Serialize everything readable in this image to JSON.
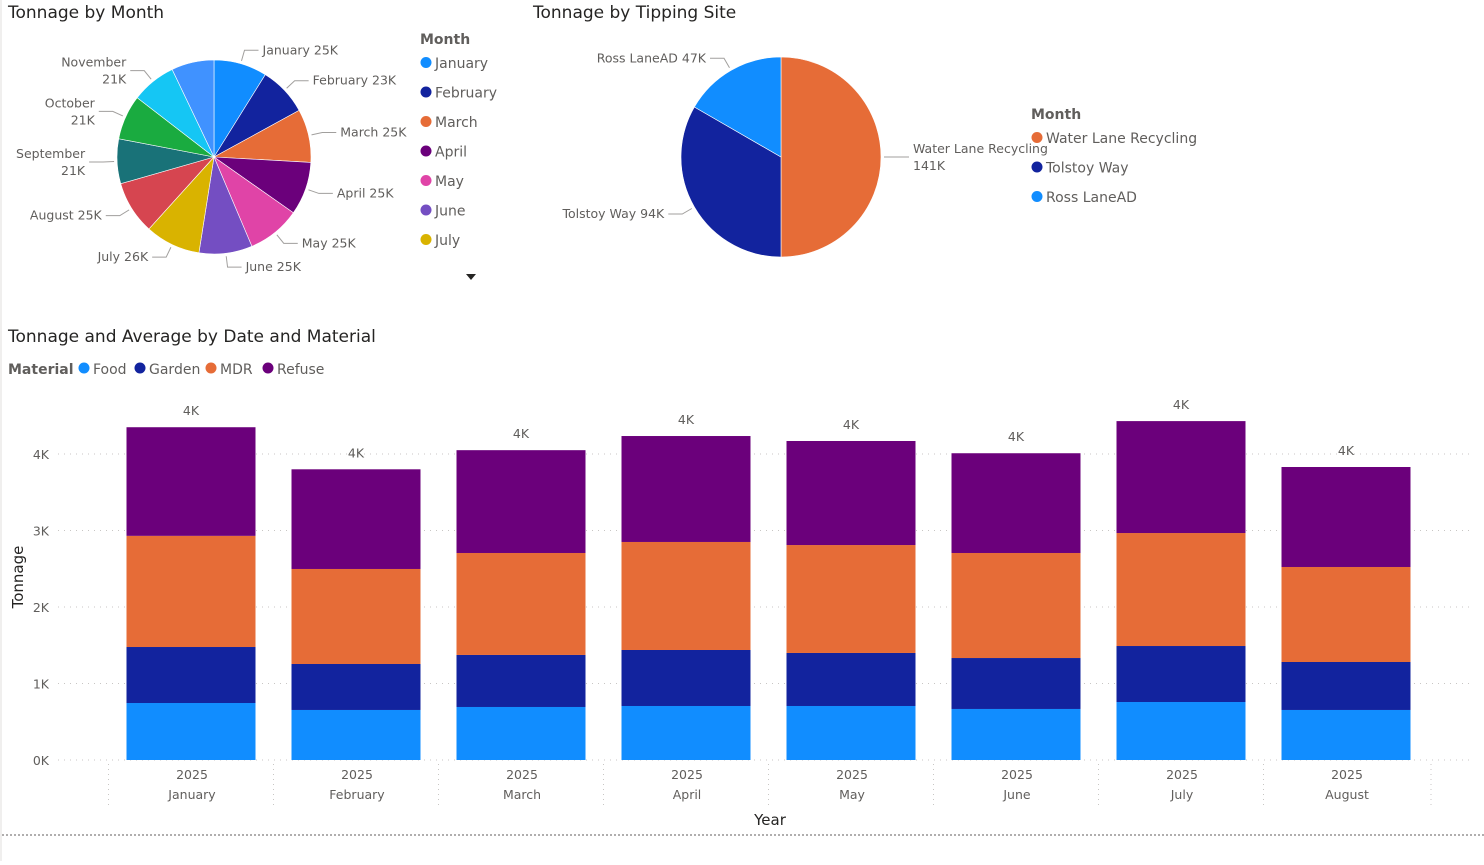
{
  "colors": {
    "food": "#118DFF",
    "garden": "#12239E",
    "mdr": "#E66C37",
    "refuse": "#6B007B"
  },
  "chart_data": [
    {
      "type": "pie",
      "title": "Tonnage by Month",
      "legend_title": "Month",
      "legend_position": "right",
      "legend_items": [
        "January",
        "February",
        "March",
        "April",
        "May",
        "June",
        "July"
      ],
      "slices": [
        {
          "name": "January",
          "value": 25000,
          "label": "25K",
          "color": "#118DFF"
        },
        {
          "name": "February",
          "value": 23000,
          "label": "23K",
          "color": "#12239E"
        },
        {
          "name": "March",
          "value": 25000,
          "label": "25K",
          "color": "#E66C37"
        },
        {
          "name": "April",
          "value": 25000,
          "label": "25K",
          "color": "#6B007B"
        },
        {
          "name": "May",
          "value": 25000,
          "label": "25K",
          "color": "#E044A7"
        },
        {
          "name": "June",
          "value": 25000,
          "label": "25K",
          "color": "#744EC2"
        },
        {
          "name": "July",
          "value": 26000,
          "label": "26K",
          "color": "#D9B300"
        },
        {
          "name": "August",
          "value": 25000,
          "label": "25K",
          "color": "#D64550"
        },
        {
          "name": "September",
          "value": 21000,
          "label": "21K",
          "color": "#197278"
        },
        {
          "name": "October",
          "value": 21000,
          "label": "21K",
          "color": "#1AAB40"
        },
        {
          "name": "November",
          "value": 21000,
          "label": "21K",
          "color": "#15C6F4"
        },
        {
          "name": "",
          "value": 20000,
          "label": "",
          "color": "#4092FF"
        }
      ]
    },
    {
      "type": "pie",
      "title": "Tonnage by Tipping Site",
      "legend_title": "Month",
      "legend_position": "right",
      "slices": [
        {
          "name": "Water Lane Recycling",
          "value": 141000,
          "label": "141K",
          "color": "#E66C37"
        },
        {
          "name": "Tolstoy Way",
          "value": 94000,
          "label": "94K",
          "color": "#12239E"
        },
        {
          "name": "Ross LaneAD",
          "value": 47000,
          "label": "47K",
          "color": "#118DFF"
        }
      ]
    },
    {
      "type": "bar",
      "stacked": true,
      "title": "Tonnage and Average by Date and Material",
      "legend_title": "Material",
      "legend_position": "top-left",
      "xlabel": "Year",
      "ylabel": "Tonnage",
      "ylim": [
        0,
        4600
      ],
      "yticks": [
        {
          "v": 0,
          "label": "0K"
        },
        {
          "v": 1000,
          "label": "1K"
        },
        {
          "v": 2000,
          "label": "2K"
        },
        {
          "v": 3000,
          "label": "3K"
        },
        {
          "v": 4000,
          "label": "4K"
        }
      ],
      "grid": true,
      "categories": [
        {
          "year": "2025",
          "month": "January"
        },
        {
          "year": "2025",
          "month": "February"
        },
        {
          "year": "2025",
          "month": "March"
        },
        {
          "year": "2025",
          "month": "April"
        },
        {
          "year": "2025",
          "month": "May"
        },
        {
          "year": "2025",
          "month": "June"
        },
        {
          "year": "2025",
          "month": "July"
        },
        {
          "year": "2025",
          "month": "August"
        }
      ],
      "series": [
        {
          "name": "Food",
          "color": "#118DFF",
          "values": [
            745,
            654,
            693,
            706,
            706,
            667,
            758,
            654
          ]
        },
        {
          "name": "Garden",
          "color": "#12239E",
          "values": [
            732,
            601,
            680,
            732,
            693,
            666,
            732,
            627
          ]
        },
        {
          "name": "MDR",
          "color": "#E66C37",
          "values": [
            1453,
            1242,
            1333,
            1412,
            1411,
            1373,
            1477,
            1242
          ]
        },
        {
          "name": "Refuse",
          "color": "#6B007B",
          "values": [
            1420,
            1303,
            1344,
            1385,
            1360,
            1304,
            1463,
            1307
          ]
        }
      ],
      "total_labels": [
        "4K",
        "4K",
        "4K",
        "4K",
        "4K",
        "4K",
        "4K",
        "4K"
      ]
    }
  ]
}
